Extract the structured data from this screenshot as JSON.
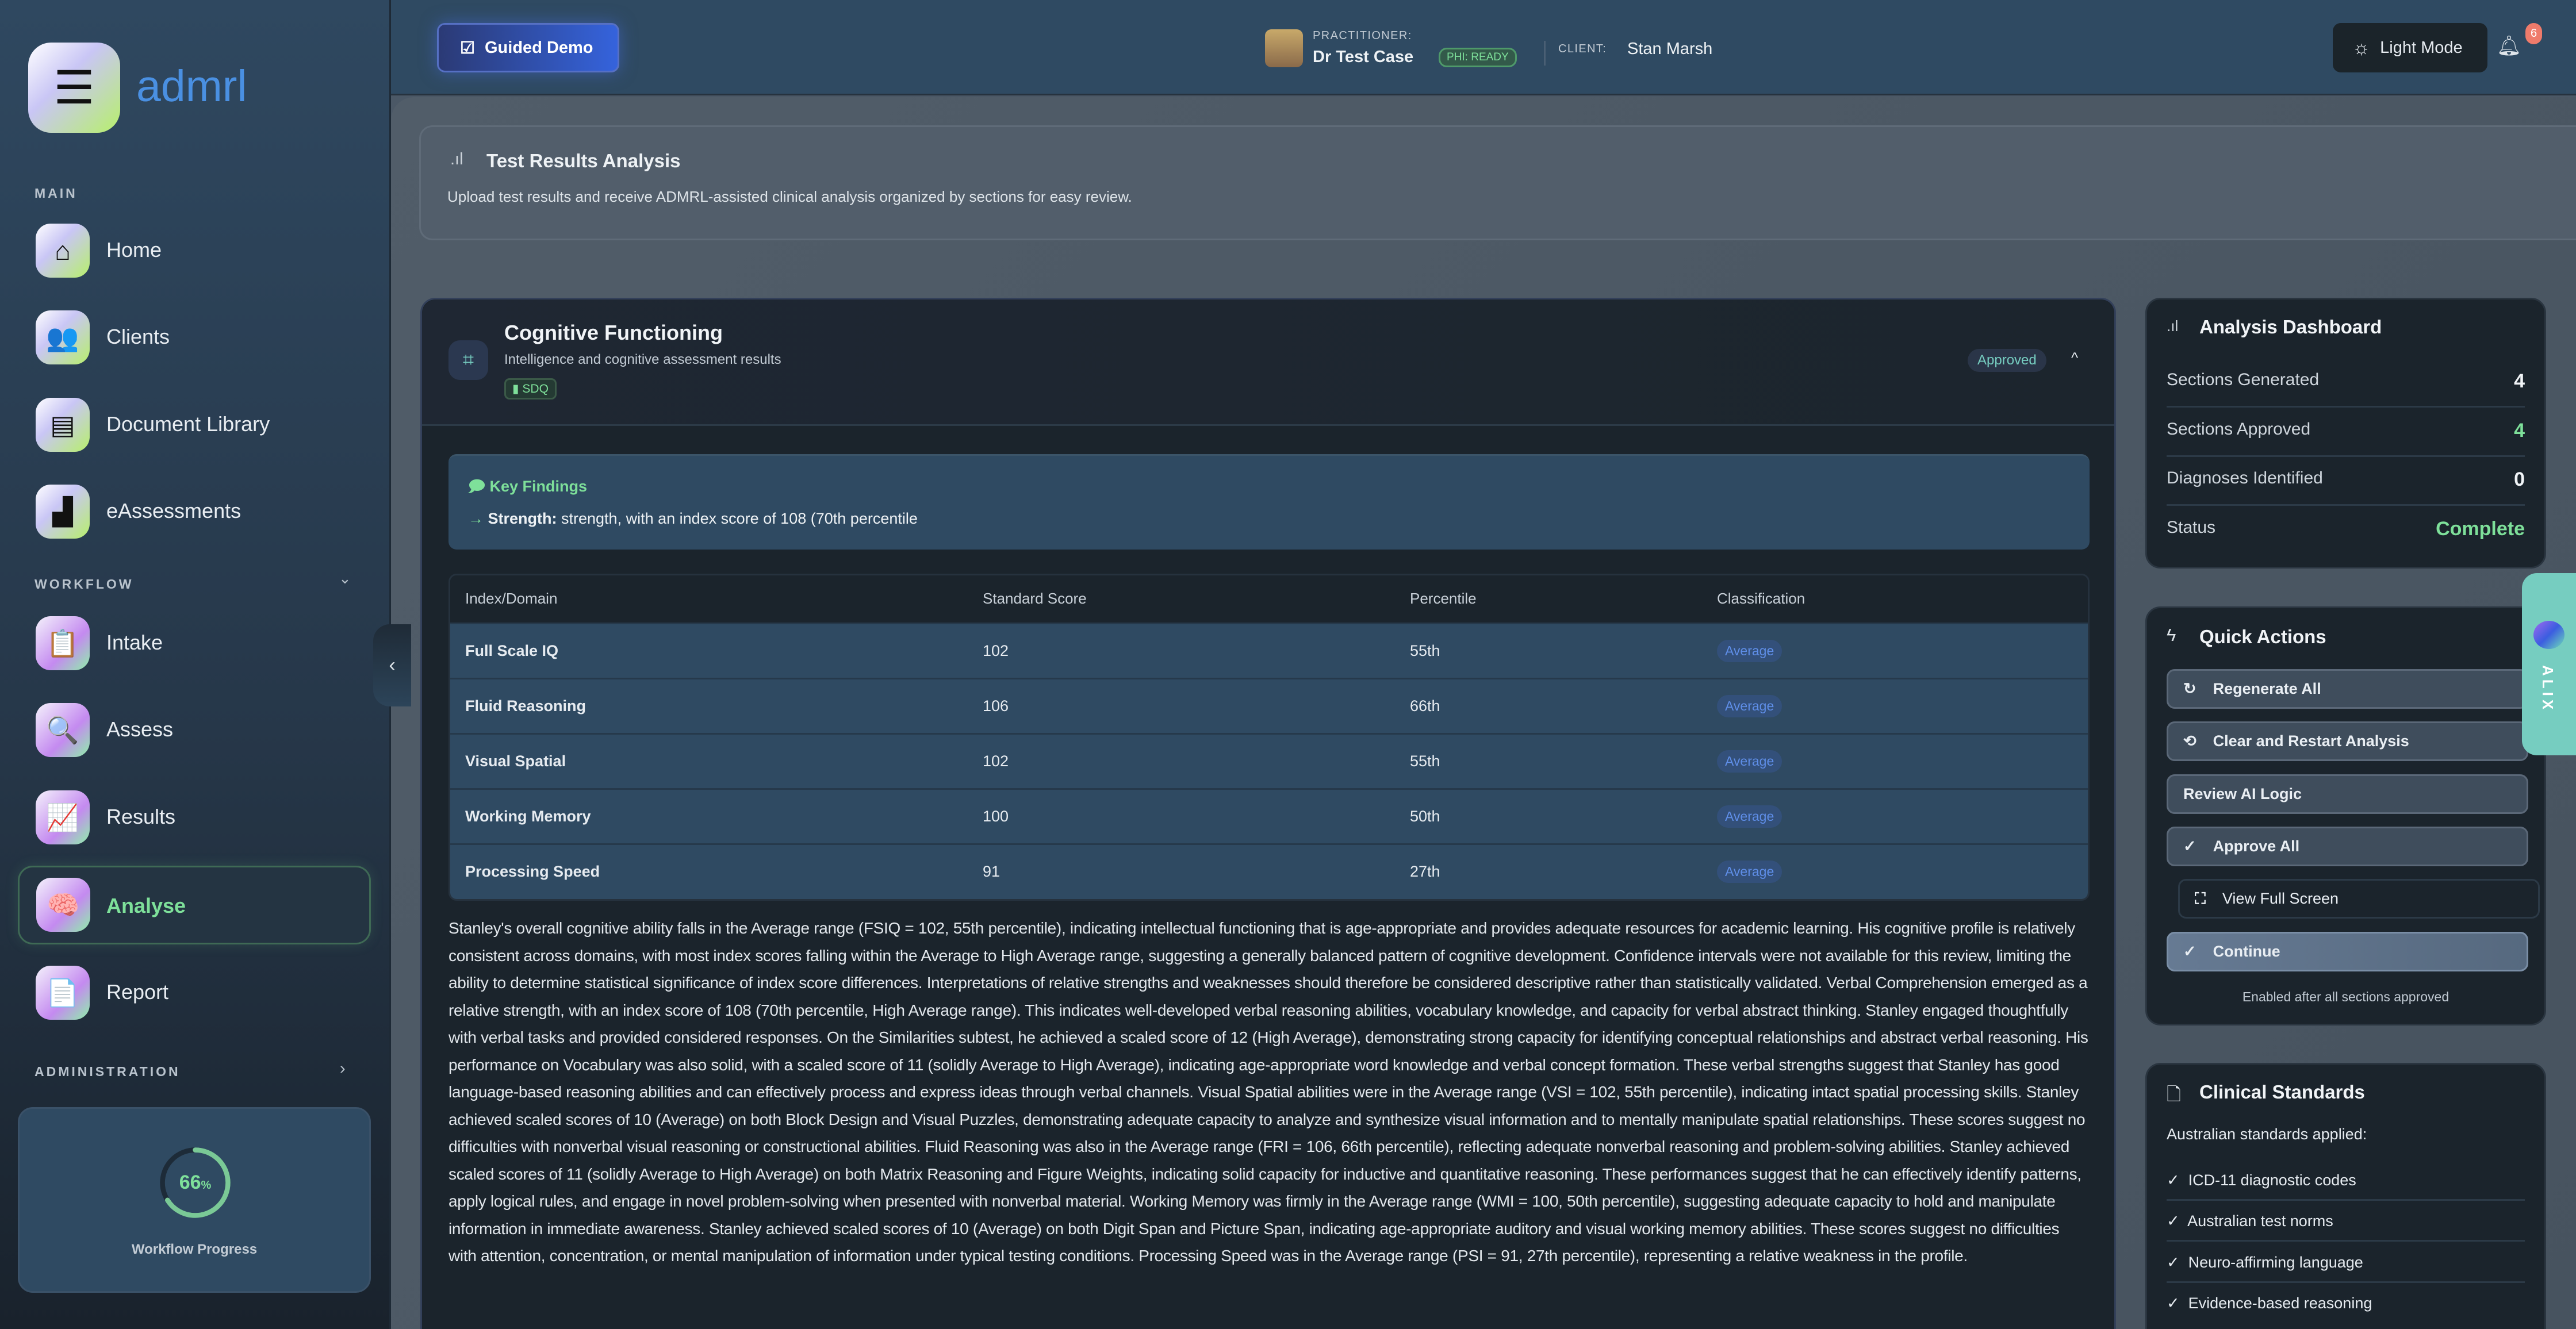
{
  "brand": {
    "name": "admrl",
    "accent": "#4a90e2"
  },
  "sidebar": {
    "main_label": "MAIN",
    "main_items": [
      {
        "label": "Home",
        "icon": "home-icon"
      },
      {
        "label": "Clients",
        "icon": "clients-icon"
      },
      {
        "label": "Document Library",
        "icon": "documents-icon"
      },
      {
        "label": "eAssessments",
        "icon": "chart-icon"
      }
    ],
    "workflow_label": "WORKFLOW",
    "workflow_items": [
      {
        "label": "Intake",
        "icon": "clipboard-icon"
      },
      {
        "label": "Assess",
        "icon": "magnifier-icon"
      },
      {
        "label": "Results",
        "icon": "results-chart-icon"
      },
      {
        "label": "Analyse",
        "icon": "analyse-head-icon",
        "active": true
      },
      {
        "label": "Report",
        "icon": "report-icon"
      }
    ],
    "admin_label": "ADMINISTRATION",
    "progress": {
      "value": 66,
      "value_text": "66",
      "unit": "%",
      "label": "Workflow Progress"
    }
  },
  "header": {
    "guided_demo": "Guided Demo",
    "practitioner_label": "PRACTITIONER:",
    "practitioner_name": "Dr Test Case",
    "phi_badge": "PHI: READY",
    "client_label": "CLIENT:",
    "client_name": "Stan Marsh",
    "light_mode": "Light Mode",
    "notification_count": "6"
  },
  "page_header": {
    "title": "Test Results Analysis",
    "description": "Upload test results and receive ADMRL-assisted clinical analysis organized by sections for easy review."
  },
  "section": {
    "title": "Cognitive Functioning",
    "subtitle": "Intelligence and cognitive assessment results",
    "tag": "SDQ",
    "status": "Approved",
    "key_findings": {
      "title": "Key Findings",
      "label": "Strength:",
      "text": "strength, with an index score of 108 (70th percentile"
    },
    "table": {
      "headers": [
        "Index/Domain",
        "Standard Score",
        "Percentile",
        "Classification"
      ],
      "rows": [
        [
          "Full Scale IQ",
          "102",
          "55th",
          "Average"
        ],
        [
          "Fluid Reasoning",
          "106",
          "66th",
          "Average"
        ],
        [
          "Visual Spatial",
          "102",
          "55th",
          "Average"
        ],
        [
          "Working Memory",
          "100",
          "50th",
          "Average"
        ],
        [
          "Processing Speed",
          "91",
          "27th",
          "Average"
        ]
      ]
    },
    "narrative": "Stanley's overall cognitive ability falls in the Average range (FSIQ = 102, 55th percentile), indicating intellectual functioning that is age-appropriate and provides adequate resources for academic learning. His cognitive profile is relatively consistent across domains, with most index scores falling within the Average to High Average range, suggesting a generally balanced pattern of cognitive development. Confidence intervals were not available for this review, limiting the ability to determine statistical significance of index score differences. Interpretations of relative strengths and weaknesses should therefore be considered descriptive rather than statistically validated. Verbal Comprehension emerged as a relative strength, with an index score of 108 (70th percentile, High Average range). This indicates well-developed verbal reasoning abilities, vocabulary knowledge, and capacity for verbal abstract thinking. Stanley engaged thoughtfully with verbal tasks and provided considered responses. On the Similarities subtest, he achieved a scaled score of 12 (High Average), demonstrating strong capacity for identifying conceptual relationships and abstract verbal reasoning. His performance on Vocabulary was also solid, with a scaled score of 11 (solidly Average to High Average), indicating age-appropriate word knowledge and verbal concept formation. These verbal strengths suggest that Stanley has good language-based reasoning abilities and can effectively process and express ideas through verbal channels. Visual Spatial abilities were in the Average range (VSI = 102, 55th percentile), indicating intact spatial processing skills. Stanley achieved scaled scores of 10 (Average) on both Block Design and Visual Puzzles, demonstrating adequate capacity to analyze and synthesize visual information and to mentally manipulate spatial relationships. These scores suggest no difficulties with nonverbal visual reasoning or constructional abilities. Fluid Reasoning was also in the Average range (FRI = 106, 66th percentile), reflecting adequate nonverbal reasoning and problem-solving abilities. Stanley achieved scaled scores of 11 (solidly Average to High Average) on both Matrix Reasoning and Figure Weights, indicating solid capacity for inductive and quantitative reasoning. These performances suggest that he can effectively identify patterns, apply logical rules, and engage in novel problem-solving when presented with nonverbal material. Working Memory was firmly in the Average range (WMI = 100, 50th percentile), suggesting adequate capacity to hold and manipulate information in immediate awareness. Stanley achieved scaled scores of 10 (Average) on both Digit Span and Picture Span, indicating age-appropriate auditory and visual working memory abilities. These scores suggest no difficulties with attention, concentration, or mental manipulation of information under typical testing conditions. Processing Speed was in the Average range (PSI = 91, 27th percentile), representing a relative weakness in the profile."
  },
  "dashboard": {
    "title": "Analysis Dashboard",
    "rows": [
      {
        "label": "Sections Generated",
        "value": "4"
      },
      {
        "label": "Sections Approved",
        "value": "4"
      },
      {
        "label": "Diagnoses Identified",
        "value": "0"
      },
      {
        "label": "Status",
        "value": "Complete"
      }
    ]
  },
  "quick_actions": {
    "title": "Quick Actions",
    "regenerate": "Regenerate All",
    "clear": "Clear and Restart Analysis",
    "review": "Review AI Logic",
    "approve": "Approve All",
    "fullscreen": "View Full Screen",
    "continue": "Continue",
    "note": "Enabled after all sections approved"
  },
  "standards": {
    "title": "Clinical Standards",
    "intro": "Australian standards applied:",
    "items": [
      "ICD-11 diagnostic codes",
      "Australian test norms",
      "Neuro-affirming language",
      "Evidence-based reasoning"
    ]
  },
  "assistant_tab": {
    "label": "ALIX"
  },
  "colors": {
    "success": "#6fd08c",
    "teal": "#76cdc0",
    "badge_red": "#ef7b6b"
  }
}
